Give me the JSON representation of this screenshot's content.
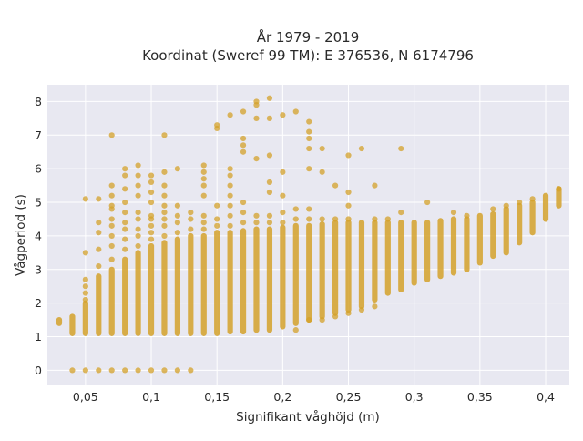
{
  "chart_data": {
    "type": "scatter",
    "title": "År 1979 - 2019",
    "subtitle": "Koordinat (Sweref 99 TM): E 376536, N 6174796",
    "xlabel": "Signifikant våghöjd (m)",
    "ylabel": "Vågperiod (s)",
    "xlim": [
      0.021,
      0.418
    ],
    "ylim": [
      -0.45,
      8.5
    ],
    "x_ticks": [
      0.05,
      0.1,
      0.15,
      0.2,
      0.25,
      0.3,
      0.35,
      0.4
    ],
    "x_tick_labels": [
      "0,05",
      "0,1",
      "0,15",
      "0,2",
      "0,25",
      "0,3",
      "0,35",
      "0,4"
    ],
    "y_ticks": [
      0,
      1,
      2,
      3,
      4,
      5,
      6,
      7,
      8
    ],
    "y_tick_labels": [
      "0",
      "1",
      "2",
      "3",
      "4",
      "5",
      "6",
      "7",
      "8"
    ],
    "grid": true,
    "legend": "none",
    "colors": {
      "marker": "#d4a12a",
      "plot_bg": "#e8e8f1",
      "grid": "#ffffff"
    },
    "bands": [
      {
        "x": 0.03,
        "y_min": 1.4,
        "y_max": 1.5
      },
      {
        "x": 0.04,
        "y_min": 1.1,
        "y_max": 1.6
      },
      {
        "x": 0.05,
        "y_min": 1.1,
        "y_max": 2.0
      },
      {
        "x": 0.06,
        "y_min": 1.1,
        "y_max": 2.8
      },
      {
        "x": 0.07,
        "y_min": 1.1,
        "y_max": 3.0
      },
      {
        "x": 0.08,
        "y_min": 1.1,
        "y_max": 3.3
      },
      {
        "x": 0.09,
        "y_min": 1.1,
        "y_max": 3.5
      },
      {
        "x": 0.1,
        "y_min": 1.1,
        "y_max": 3.7
      },
      {
        "x": 0.11,
        "y_min": 1.1,
        "y_max": 3.8
      },
      {
        "x": 0.12,
        "y_min": 1.1,
        "y_max": 3.9
      },
      {
        "x": 0.13,
        "y_min": 1.1,
        "y_max": 4.0
      },
      {
        "x": 0.14,
        "y_min": 1.1,
        "y_max": 4.0
      },
      {
        "x": 0.15,
        "y_min": 1.1,
        "y_max": 4.1
      },
      {
        "x": 0.16,
        "y_min": 1.15,
        "y_max": 4.1
      },
      {
        "x": 0.17,
        "y_min": 1.15,
        "y_max": 4.15
      },
      {
        "x": 0.18,
        "y_min": 1.2,
        "y_max": 4.2
      },
      {
        "x": 0.19,
        "y_min": 1.2,
        "y_max": 4.2
      },
      {
        "x": 0.2,
        "y_min": 1.3,
        "y_max": 4.25
      },
      {
        "x": 0.21,
        "y_min": 1.4,
        "y_max": 4.3
      },
      {
        "x": 0.22,
        "y_min": 1.5,
        "y_max": 4.3
      },
      {
        "x": 0.23,
        "y_min": 1.6,
        "y_max": 4.35
      },
      {
        "x": 0.24,
        "y_min": 1.7,
        "y_max": 4.4
      },
      {
        "x": 0.25,
        "y_min": 1.8,
        "y_max": 4.4
      },
      {
        "x": 0.26,
        "y_min": 1.9,
        "y_max": 4.4
      },
      {
        "x": 0.27,
        "y_min": 2.1,
        "y_max": 4.4
      },
      {
        "x": 0.28,
        "y_min": 2.3,
        "y_max": 4.4
      },
      {
        "x": 0.29,
        "y_min": 2.4,
        "y_max": 4.4
      },
      {
        "x": 0.3,
        "y_min": 2.6,
        "y_max": 4.4
      },
      {
        "x": 0.31,
        "y_min": 2.7,
        "y_max": 4.4
      },
      {
        "x": 0.32,
        "y_min": 2.8,
        "y_max": 4.45
      },
      {
        "x": 0.33,
        "y_min": 2.9,
        "y_max": 4.5
      },
      {
        "x": 0.34,
        "y_min": 3.0,
        "y_max": 4.5
      },
      {
        "x": 0.35,
        "y_min": 3.2,
        "y_max": 4.6
      },
      {
        "x": 0.36,
        "y_min": 3.4,
        "y_max": 4.65
      },
      {
        "x": 0.37,
        "y_min": 3.5,
        "y_max": 4.8
      },
      {
        "x": 0.38,
        "y_min": 3.8,
        "y_max": 4.9
      },
      {
        "x": 0.39,
        "y_min": 4.1,
        "y_max": 5.0
      },
      {
        "x": 0.4,
        "y_min": 4.5,
        "y_max": 5.2
      },
      {
        "x": 0.41,
        "y_min": 4.9,
        "y_max": 5.4
      }
    ],
    "points": [
      {
        "x": 0.04,
        "y": 0
      },
      {
        "x": 0.05,
        "y": 0
      },
      {
        "x": 0.06,
        "y": 0
      },
      {
        "x": 0.07,
        "y": 0
      },
      {
        "x": 0.08,
        "y": 0
      },
      {
        "x": 0.09,
        "y": 0
      },
      {
        "x": 0.1,
        "y": 0
      },
      {
        "x": 0.11,
        "y": 0
      },
      {
        "x": 0.12,
        "y": 0
      },
      {
        "x": 0.13,
        "y": 0
      },
      {
        "x": 0.05,
        "y": 2.1
      },
      {
        "x": 0.05,
        "y": 2.3
      },
      {
        "x": 0.05,
        "y": 2.5
      },
      {
        "x": 0.05,
        "y": 2.7
      },
      {
        "x": 0.05,
        "y": 3.5
      },
      {
        "x": 0.05,
        "y": 5.1
      },
      {
        "x": 0.06,
        "y": 3.1
      },
      {
        "x": 0.06,
        "y": 3.6
      },
      {
        "x": 0.06,
        "y": 4.1
      },
      {
        "x": 0.06,
        "y": 4.4
      },
      {
        "x": 0.06,
        "y": 5.1
      },
      {
        "x": 0.07,
        "y": 3.3
      },
      {
        "x": 0.07,
        "y": 3.7
      },
      {
        "x": 0.07,
        "y": 4.0
      },
      {
        "x": 0.07,
        "y": 4.3
      },
      {
        "x": 0.07,
        "y": 4.5
      },
      {
        "x": 0.07,
        "y": 4.8
      },
      {
        "x": 0.07,
        "y": 4.9
      },
      {
        "x": 0.07,
        "y": 5.2
      },
      {
        "x": 0.07,
        "y": 5.5
      },
      {
        "x": 0.07,
        "y": 7.0
      },
      {
        "x": 0.08,
        "y": 3.6
      },
      {
        "x": 0.08,
        "y": 3.9
      },
      {
        "x": 0.08,
        "y": 4.2
      },
      {
        "x": 0.08,
        "y": 4.4
      },
      {
        "x": 0.08,
        "y": 4.7
      },
      {
        "x": 0.08,
        "y": 5.0
      },
      {
        "x": 0.08,
        "y": 5.4
      },
      {
        "x": 0.08,
        "y": 5.8
      },
      {
        "x": 0.08,
        "y": 6.0
      },
      {
        "x": 0.09,
        "y": 3.7
      },
      {
        "x": 0.09,
        "y": 4.0
      },
      {
        "x": 0.09,
        "y": 4.2
      },
      {
        "x": 0.09,
        "y": 4.5
      },
      {
        "x": 0.09,
        "y": 4.7
      },
      {
        "x": 0.09,
        "y": 5.2
      },
      {
        "x": 0.09,
        "y": 5.5
      },
      {
        "x": 0.09,
        "y": 5.8
      },
      {
        "x": 0.09,
        "y": 6.1
      },
      {
        "x": 0.1,
        "y": 3.9
      },
      {
        "x": 0.1,
        "y": 4.1
      },
      {
        "x": 0.1,
        "y": 4.3
      },
      {
        "x": 0.1,
        "y": 4.5
      },
      {
        "x": 0.1,
        "y": 4.6
      },
      {
        "x": 0.1,
        "y": 5.0
      },
      {
        "x": 0.1,
        "y": 5.3
      },
      {
        "x": 0.1,
        "y": 5.6
      },
      {
        "x": 0.1,
        "y": 5.8
      },
      {
        "x": 0.11,
        "y": 4.0
      },
      {
        "x": 0.11,
        "y": 4.3
      },
      {
        "x": 0.11,
        "y": 4.5
      },
      {
        "x": 0.11,
        "y": 4.7
      },
      {
        "x": 0.11,
        "y": 4.9
      },
      {
        "x": 0.11,
        "y": 5.2
      },
      {
        "x": 0.11,
        "y": 5.5
      },
      {
        "x": 0.11,
        "y": 5.9
      },
      {
        "x": 0.11,
        "y": 7.0
      },
      {
        "x": 0.12,
        "y": 4.1
      },
      {
        "x": 0.12,
        "y": 4.4
      },
      {
        "x": 0.12,
        "y": 4.6
      },
      {
        "x": 0.12,
        "y": 4.9
      },
      {
        "x": 0.12,
        "y": 6.0
      },
      {
        "x": 0.13,
        "y": 4.2
      },
      {
        "x": 0.13,
        "y": 4.5
      },
      {
        "x": 0.13,
        "y": 4.7
      },
      {
        "x": 0.14,
        "y": 4.2
      },
      {
        "x": 0.14,
        "y": 4.4
      },
      {
        "x": 0.14,
        "y": 4.6
      },
      {
        "x": 0.14,
        "y": 5.2
      },
      {
        "x": 0.14,
        "y": 5.5
      },
      {
        "x": 0.14,
        "y": 5.7
      },
      {
        "x": 0.14,
        "y": 5.9
      },
      {
        "x": 0.14,
        "y": 6.1
      },
      {
        "x": 0.15,
        "y": 4.3
      },
      {
        "x": 0.15,
        "y": 4.5
      },
      {
        "x": 0.15,
        "y": 4.9
      },
      {
        "x": 0.15,
        "y": 7.2
      },
      {
        "x": 0.15,
        "y": 7.3
      },
      {
        "x": 0.16,
        "y": 4.3
      },
      {
        "x": 0.16,
        "y": 4.6
      },
      {
        "x": 0.16,
        "y": 4.9
      },
      {
        "x": 0.16,
        "y": 5.2
      },
      {
        "x": 0.16,
        "y": 5.5
      },
      {
        "x": 0.16,
        "y": 5.8
      },
      {
        "x": 0.16,
        "y": 6.0
      },
      {
        "x": 0.16,
        "y": 7.6
      },
      {
        "x": 0.17,
        "y": 4.4
      },
      {
        "x": 0.17,
        "y": 4.7
      },
      {
        "x": 0.17,
        "y": 5.0
      },
      {
        "x": 0.17,
        "y": 6.5
      },
      {
        "x": 0.17,
        "y": 6.7
      },
      {
        "x": 0.17,
        "y": 6.9
      },
      {
        "x": 0.17,
        "y": 7.7
      },
      {
        "x": 0.18,
        "y": 4.4
      },
      {
        "x": 0.18,
        "y": 4.6
      },
      {
        "x": 0.18,
        "y": 6.3
      },
      {
        "x": 0.18,
        "y": 7.5
      },
      {
        "x": 0.18,
        "y": 7.9
      },
      {
        "x": 0.18,
        "y": 8.0
      },
      {
        "x": 0.19,
        "y": 4.4
      },
      {
        "x": 0.19,
        "y": 4.6
      },
      {
        "x": 0.19,
        "y": 5.3
      },
      {
        "x": 0.19,
        "y": 5.6
      },
      {
        "x": 0.19,
        "y": 6.4
      },
      {
        "x": 0.19,
        "y": 7.5
      },
      {
        "x": 0.19,
        "y": 8.1
      },
      {
        "x": 0.2,
        "y": 4.4
      },
      {
        "x": 0.2,
        "y": 4.7
      },
      {
        "x": 0.2,
        "y": 5.2
      },
      {
        "x": 0.2,
        "y": 5.9
      },
      {
        "x": 0.2,
        "y": 7.6
      },
      {
        "x": 0.21,
        "y": 4.5
      },
      {
        "x": 0.21,
        "y": 4.8
      },
      {
        "x": 0.21,
        "y": 7.7
      },
      {
        "x": 0.22,
        "y": 4.5
      },
      {
        "x": 0.22,
        "y": 4.8
      },
      {
        "x": 0.22,
        "y": 6.0
      },
      {
        "x": 0.22,
        "y": 6.6
      },
      {
        "x": 0.22,
        "y": 6.9
      },
      {
        "x": 0.22,
        "y": 7.1
      },
      {
        "x": 0.22,
        "y": 7.4
      },
      {
        "x": 0.23,
        "y": 4.5
      },
      {
        "x": 0.23,
        "y": 5.9
      },
      {
        "x": 0.23,
        "y": 6.6
      },
      {
        "x": 0.24,
        "y": 4.5
      },
      {
        "x": 0.24,
        "y": 5.5
      },
      {
        "x": 0.25,
        "y": 4.5
      },
      {
        "x": 0.25,
        "y": 4.9
      },
      {
        "x": 0.25,
        "y": 5.3
      },
      {
        "x": 0.25,
        "y": 6.4
      },
      {
        "x": 0.26,
        "y": 6.6
      },
      {
        "x": 0.27,
        "y": 4.5
      },
      {
        "x": 0.27,
        "y": 5.5
      },
      {
        "x": 0.28,
        "y": 4.5
      },
      {
        "x": 0.29,
        "y": 4.7
      },
      {
        "x": 0.29,
        "y": 6.6
      },
      {
        "x": 0.31,
        "y": 5.0
      },
      {
        "x": 0.33,
        "y": 4.7
      },
      {
        "x": 0.34,
        "y": 4.6
      },
      {
        "x": 0.36,
        "y": 4.8
      },
      {
        "x": 0.37,
        "y": 4.9
      },
      {
        "x": 0.38,
        "y": 5.0
      },
      {
        "x": 0.39,
        "y": 5.1
      },
      {
        "x": 0.41,
        "y": 5.4
      },
      {
        "x": 0.21,
        "y": 1.2
      },
      {
        "x": 0.22,
        "y": 1.5
      },
      {
        "x": 0.23,
        "y": 1.5
      },
      {
        "x": 0.24,
        "y": 1.6
      },
      {
        "x": 0.25,
        "y": 1.7
      },
      {
        "x": 0.26,
        "y": 1.8
      },
      {
        "x": 0.27,
        "y": 1.9
      }
    ]
  }
}
